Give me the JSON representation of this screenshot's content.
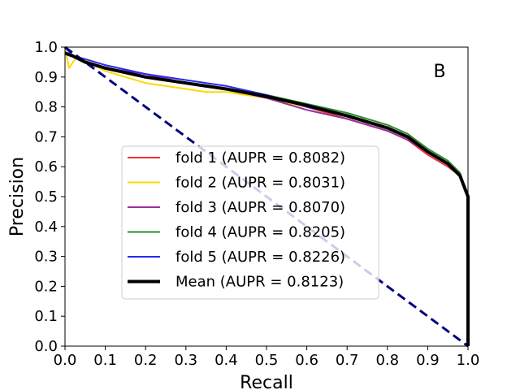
{
  "chart_data": {
    "type": "line",
    "title": "",
    "panel_label": "B",
    "xlabel": "Recall",
    "ylabel": "Precision",
    "xlim": [
      0.0,
      1.0
    ],
    "ylim": [
      0.0,
      1.0
    ],
    "xticks": [
      "0.0",
      "0.1",
      "0.2",
      "0.3",
      "0.4",
      "0.5",
      "0.6",
      "0.7",
      "0.8",
      "0.9",
      "1.0"
    ],
    "yticks": [
      "0.0",
      "0.1",
      "0.2",
      "0.3",
      "0.4",
      "0.5",
      "0.6",
      "0.7",
      "0.8",
      "0.9",
      "1.0"
    ],
    "grid": false,
    "legend_position": "center-left",
    "series": [
      {
        "name": "fold 1 (AUPR = 0.8082)",
        "color": "#ee3333",
        "width": 2,
        "points": [
          [
            0.0,
            1.0
          ],
          [
            0.02,
            0.97
          ],
          [
            0.05,
            0.95
          ],
          [
            0.1,
            0.93
          ],
          [
            0.2,
            0.9
          ],
          [
            0.3,
            0.88
          ],
          [
            0.4,
            0.86
          ],
          [
            0.5,
            0.83
          ],
          [
            0.6,
            0.8
          ],
          [
            0.7,
            0.76
          ],
          [
            0.8,
            0.72
          ],
          [
            0.85,
            0.69
          ],
          [
            0.9,
            0.64
          ],
          [
            0.95,
            0.6
          ],
          [
            0.98,
            0.57
          ],
          [
            1.0,
            0.5
          ],
          [
            1.0,
            0.0
          ]
        ]
      },
      {
        "name": "fold 2 (AUPR = 0.8031)",
        "color": "#ffd700",
        "width": 2,
        "points": [
          [
            0.0,
            1.0
          ],
          [
            0.01,
            0.93
          ],
          [
            0.03,
            0.97
          ],
          [
            0.1,
            0.92
          ],
          [
            0.2,
            0.88
          ],
          [
            0.3,
            0.86
          ],
          [
            0.35,
            0.85
          ],
          [
            0.4,
            0.85
          ],
          [
            0.5,
            0.83
          ],
          [
            0.6,
            0.8
          ],
          [
            0.7,
            0.77
          ],
          [
            0.8,
            0.73
          ],
          [
            0.85,
            0.7
          ],
          [
            0.9,
            0.65
          ],
          [
            0.95,
            0.61
          ],
          [
            0.98,
            0.57
          ],
          [
            1.0,
            0.5
          ],
          [
            1.0,
            0.0
          ]
        ]
      },
      {
        "name": "fold 3 (AUPR = 0.8070)",
        "color": "#9b309b",
        "width": 2,
        "points": [
          [
            0.0,
            1.0
          ],
          [
            0.02,
            0.97
          ],
          [
            0.05,
            0.95
          ],
          [
            0.1,
            0.93
          ],
          [
            0.2,
            0.91
          ],
          [
            0.3,
            0.88
          ],
          [
            0.4,
            0.86
          ],
          [
            0.5,
            0.83
          ],
          [
            0.6,
            0.79
          ],
          [
            0.7,
            0.76
          ],
          [
            0.8,
            0.72
          ],
          [
            0.85,
            0.69
          ],
          [
            0.9,
            0.65
          ],
          [
            0.95,
            0.61
          ],
          [
            0.98,
            0.57
          ],
          [
            1.0,
            0.5
          ],
          [
            1.0,
            0.0
          ]
        ]
      },
      {
        "name": "fold 4 (AUPR = 0.8205)",
        "color": "#2e8b2e",
        "width": 2,
        "points": [
          [
            0.0,
            1.0
          ],
          [
            0.02,
            0.97
          ],
          [
            0.05,
            0.95
          ],
          [
            0.1,
            0.93
          ],
          [
            0.2,
            0.9
          ],
          [
            0.3,
            0.88
          ],
          [
            0.4,
            0.86
          ],
          [
            0.5,
            0.84
          ],
          [
            0.6,
            0.81
          ],
          [
            0.7,
            0.78
          ],
          [
            0.8,
            0.74
          ],
          [
            0.85,
            0.71
          ],
          [
            0.9,
            0.66
          ],
          [
            0.95,
            0.62
          ],
          [
            0.98,
            0.58
          ],
          [
            1.0,
            0.5
          ],
          [
            1.0,
            0.0
          ]
        ]
      },
      {
        "name": "fold 5 (AUPR = 0.8226)",
        "color": "#2a2aee",
        "width": 2,
        "points": [
          [
            0.0,
            1.0
          ],
          [
            0.02,
            0.97
          ],
          [
            0.05,
            0.96
          ],
          [
            0.1,
            0.94
          ],
          [
            0.2,
            0.91
          ],
          [
            0.3,
            0.89
          ],
          [
            0.4,
            0.87
          ],
          [
            0.5,
            0.84
          ],
          [
            0.6,
            0.8
          ],
          [
            0.7,
            0.77
          ],
          [
            0.8,
            0.73
          ],
          [
            0.85,
            0.7
          ],
          [
            0.9,
            0.65
          ],
          [
            0.95,
            0.61
          ],
          [
            0.98,
            0.57
          ],
          [
            1.0,
            0.5
          ],
          [
            1.0,
            0.0
          ]
        ]
      },
      {
        "name": "Mean (AUPR = 0.8123)",
        "color": "#000000",
        "width": 4,
        "points": [
          [
            0.0,
            0.98
          ],
          [
            0.02,
            0.97
          ],
          [
            0.05,
            0.95
          ],
          [
            0.1,
            0.93
          ],
          [
            0.2,
            0.9
          ],
          [
            0.3,
            0.88
          ],
          [
            0.4,
            0.86
          ],
          [
            0.5,
            0.835
          ],
          [
            0.6,
            0.805
          ],
          [
            0.7,
            0.77
          ],
          [
            0.8,
            0.73
          ],
          [
            0.85,
            0.7
          ],
          [
            0.9,
            0.65
          ],
          [
            0.95,
            0.61
          ],
          [
            0.98,
            0.57
          ],
          [
            1.0,
            0.5
          ],
          [
            1.0,
            0.0
          ]
        ]
      }
    ],
    "reference_line": {
      "color": "#000080",
      "dashed": true,
      "points": [
        [
          0.0,
          1.0
        ],
        [
          1.0,
          0.0
        ]
      ]
    }
  }
}
